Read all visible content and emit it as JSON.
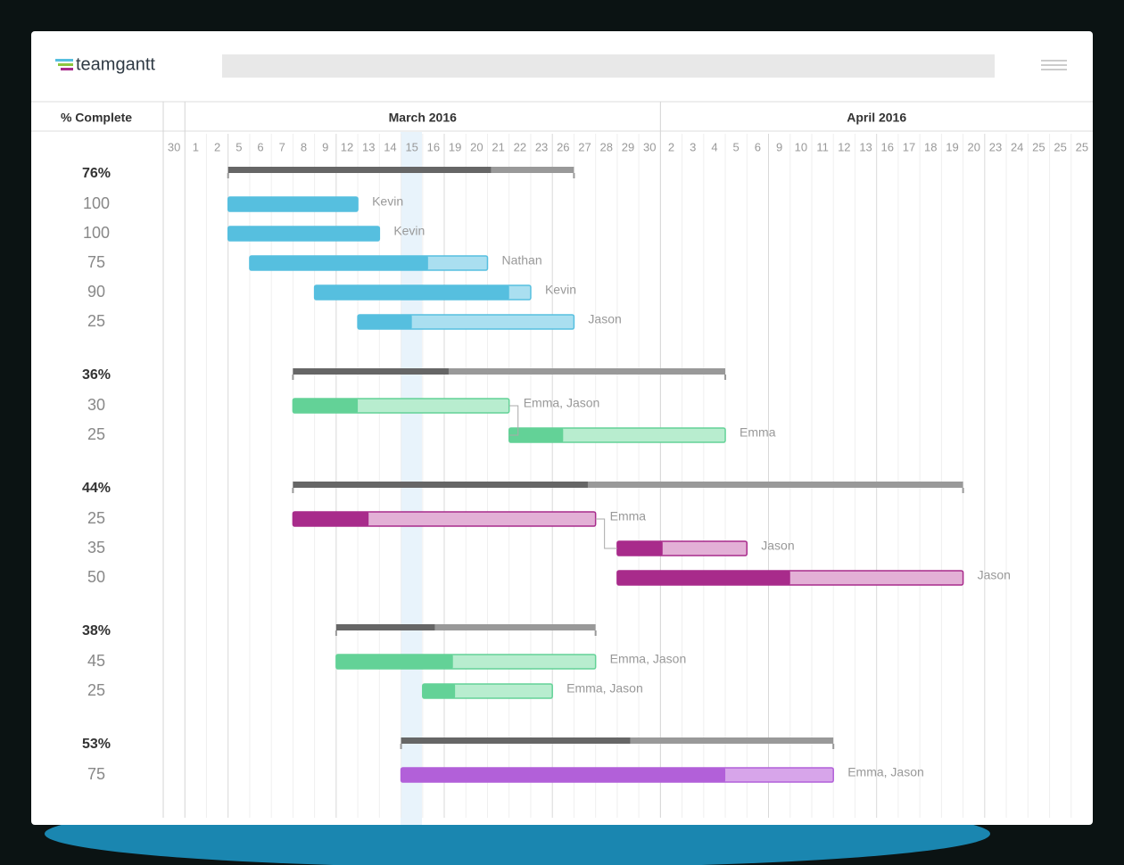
{
  "header": {
    "logo": "teamgantt",
    "column_title": "% Complete"
  },
  "timeline": {
    "months": [
      "March 2016",
      "April 2016"
    ],
    "days": [
      30,
      1,
      2,
      5,
      6,
      7,
      8,
      9,
      12,
      13,
      14,
      15,
      16,
      19,
      20,
      21,
      22,
      23,
      26,
      27,
      28,
      29,
      30,
      2,
      3,
      4,
      5,
      6,
      9,
      10,
      11,
      12,
      13,
      16,
      17,
      18,
      19,
      20,
      23,
      24,
      25,
      25,
      25
    ]
  },
  "groups": [
    {
      "percent": 76,
      "percent_label": "76%",
      "start": 3,
      "end": 19,
      "color": "#56bfdf",
      "light": "#aadff0",
      "tasks": [
        {
          "percent": 100,
          "start": 3,
          "end": 9,
          "assignee": "Kevin"
        },
        {
          "percent": 100,
          "start": 3,
          "end": 10,
          "assignee": "Kevin"
        },
        {
          "percent": 75,
          "start": 4,
          "end": 15,
          "assignee": "Nathan"
        },
        {
          "percent": 90,
          "start": 7,
          "end": 17,
          "assignee": "Kevin"
        },
        {
          "percent": 25,
          "start": 9,
          "end": 19,
          "assignee": "Jason"
        }
      ]
    },
    {
      "percent": 36,
      "percent_label": "36%",
      "start": 6,
      "end": 26,
      "color": "#63d297",
      "light": "#b8edcf",
      "tasks": [
        {
          "percent": 30,
          "start": 6,
          "end": 16,
          "assignee": "Emma, Jason"
        },
        {
          "percent": 25,
          "start": 16,
          "end": 26,
          "assignee": "Emma"
        }
      ]
    },
    {
      "percent": 44,
      "percent_label": "44%",
      "start": 6,
      "end": 37,
      "color": "#a82b8b",
      "light": "#e3b0d6",
      "tasks": [
        {
          "percent": 25,
          "start": 6,
          "end": 20,
          "assignee": "Emma"
        },
        {
          "percent": 35,
          "start": 21,
          "end": 27,
          "assignee": "Jason"
        },
        {
          "percent": 50,
          "start": 21,
          "end": 37,
          "assignee": "Jason"
        }
      ]
    },
    {
      "percent": 38,
      "percent_label": "38%",
      "start": 8,
      "end": 20,
      "color": "#63d297",
      "light": "#b8edcf",
      "tasks": [
        {
          "percent": 45,
          "start": 8,
          "end": 20,
          "assignee": "Emma, Jason"
        },
        {
          "percent": 25,
          "start": 12,
          "end": 18,
          "assignee": "Emma, Jason"
        }
      ]
    },
    {
      "percent": 53,
      "percent_label": "53%",
      "start": 11,
      "end": 31,
      "color": "#b260d9",
      "light": "#d7a5ea",
      "tasks": [
        {
          "percent": 75,
          "start": 11,
          "end": 31,
          "assignee": "Emma, Jason"
        }
      ]
    }
  ]
}
